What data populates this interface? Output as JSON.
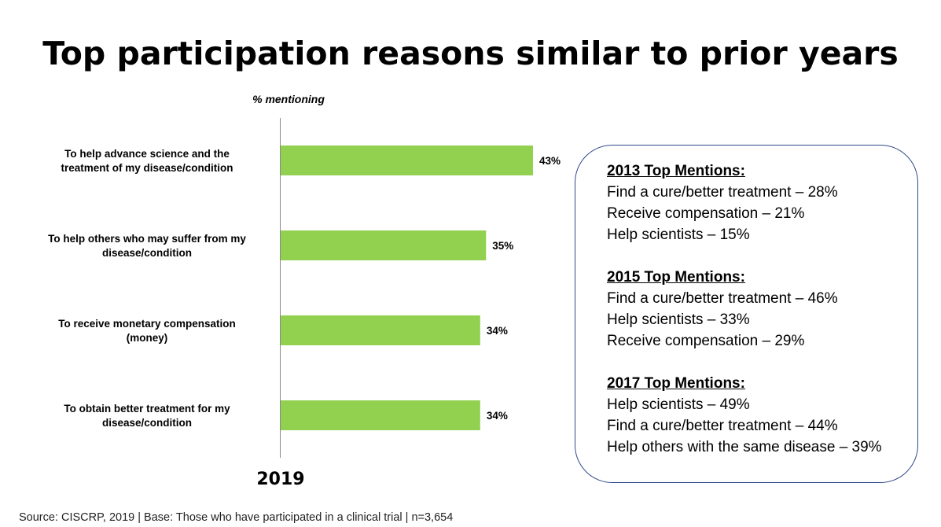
{
  "title": "Top participation reasons similar to prior years",
  "chart_data": {
    "type": "bar",
    "orientation": "horizontal",
    "subtitle": "% mentioning",
    "xlabel": "2019",
    "categories": [
      [
        "To help advance science and the",
        "treatment of my disease/condition"
      ],
      [
        "To help others who may suffer from my",
        "disease/condition"
      ],
      [
        "To receive monetary compensation",
        "(money)"
      ],
      [
        "To obtain better treatment for my",
        "disease/condition"
      ]
    ],
    "values": [
      43,
      35,
      34,
      34
    ],
    "value_labels": [
      "43%",
      "35%",
      "34%",
      "34%"
    ],
    "xlim": [
      0,
      100
    ],
    "grid": false,
    "bar_color": "#92d050"
  },
  "notes": [
    {
      "heading": "2013 Top Mentions:",
      "lines": [
        "Find a cure/better treatment – 28%",
        "Receive compensation – 21%",
        "Help scientists – 15%"
      ]
    },
    {
      "heading": "2015 Top Mentions:",
      "lines": [
        "Find a cure/better treatment – 46%",
        "Help scientists – 33%",
        "Receive compensation – 29%"
      ]
    },
    {
      "heading": "2017 Top Mentions:",
      "lines": [
        "Help scientists – 49%",
        "Find a cure/better treatment – 44%",
        "Help others with the same disease – 39%"
      ]
    }
  ],
  "source": "Source: CISCRP, 2019 | Base: Those who have participated in a clinical trial | n=3,654"
}
